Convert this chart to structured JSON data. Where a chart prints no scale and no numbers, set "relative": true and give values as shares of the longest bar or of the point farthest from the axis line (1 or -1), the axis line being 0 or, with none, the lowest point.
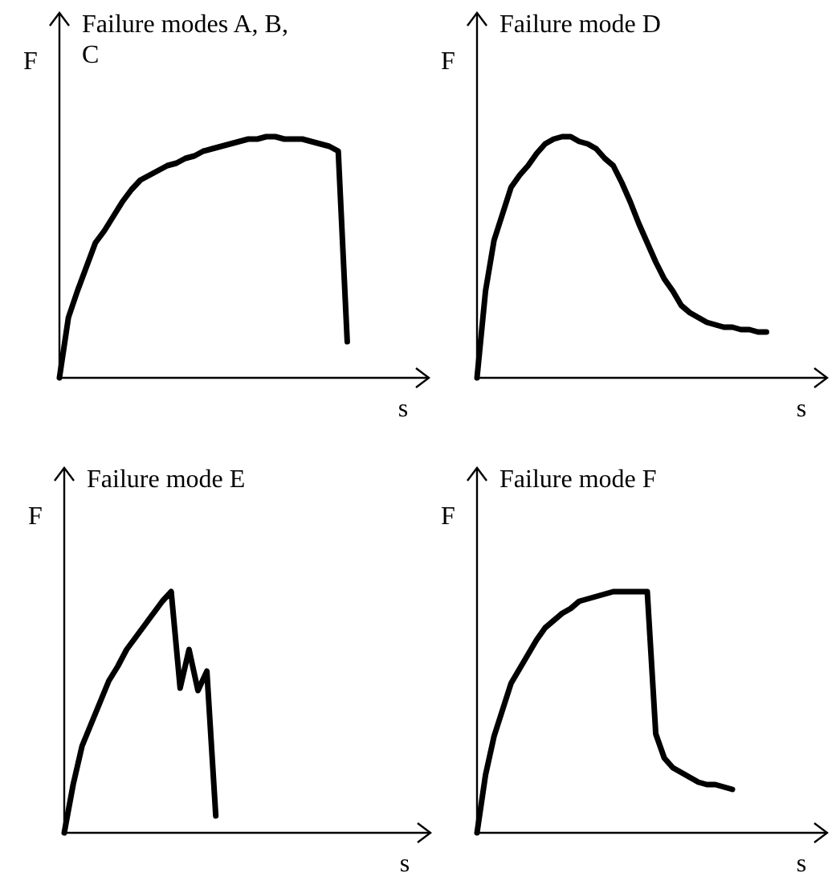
{
  "chart_data": [
    {
      "type": "line",
      "relative": true,
      "title": "Failure modes A, B, C",
      "xlabel": "s",
      "ylabel": "F",
      "marker": "none",
      "line_style": "solid",
      "categories": [
        null,
        null,
        null,
        null,
        null,
        null,
        null,
        null,
        null,
        null,
        null,
        null,
        null,
        null,
        null,
        null,
        null,
        null,
        null,
        null,
        null,
        null,
        null,
        null,
        null,
        null,
        null,
        null,
        null,
        null,
        null,
        null,
        null,
        null,
        null,
        null,
        null,
        null,
        null,
        null
      ],
      "series": [
        {
          "color": "#000000",
          "values": [
            0,
            0.25,
            0.36,
            0.46,
            0.56,
            0.61,
            0.67,
            0.73,
            0.78,
            0.82,
            0.84,
            0.86,
            0.88,
            0.89,
            0.91,
            0.92,
            0.94,
            0.95,
            0.96,
            0.97,
            0.98,
            0.99,
            0.99,
            1,
            1,
            0.99,
            0.99,
            0.99,
            0.98,
            0.97,
            0.96,
            0.94,
            0.15,
            null,
            null,
            null,
            null,
            null,
            null,
            null
          ]
        }
      ]
    },
    {
      "type": "line",
      "relative": true,
      "title": "Failure mode D",
      "xlabel": "s",
      "ylabel": "F",
      "marker": "none",
      "line_style": "solid",
      "categories": [
        null,
        null,
        null,
        null,
        null,
        null,
        null,
        null,
        null,
        null,
        null,
        null,
        null,
        null,
        null,
        null,
        null,
        null,
        null,
        null,
        null,
        null,
        null,
        null,
        null,
        null,
        null,
        null,
        null,
        null,
        null,
        null,
        null,
        null,
        null,
        null,
        null,
        null,
        null,
        null
      ],
      "series": [
        {
          "color": "#000000",
          "values": [
            0,
            0.36,
            0.57,
            0.68,
            0.79,
            0.84,
            0.88,
            0.93,
            0.97,
            0.99,
            1,
            1,
            0.98,
            0.97,
            0.95,
            0.91,
            0.88,
            0.81,
            0.73,
            0.64,
            0.56,
            0.48,
            0.41,
            0.36,
            0.3,
            0.27,
            0.25,
            0.23,
            0.22,
            0.21,
            0.21,
            0.2,
            0.2,
            0.19,
            0.19,
            null,
            null,
            null,
            null,
            null
          ]
        }
      ]
    },
    {
      "type": "line",
      "relative": true,
      "title": "Failure mode E",
      "xlabel": "s",
      "ylabel": "F",
      "marker": "none",
      "line_style": "solid",
      "categories": [
        null,
        null,
        null,
        null,
        null,
        null,
        null,
        null,
        null,
        null,
        null,
        null,
        null,
        null,
        null,
        null,
        null,
        null,
        null,
        null,
        null,
        null,
        null,
        null,
        null,
        null,
        null,
        null,
        null,
        null,
        null,
        null,
        null,
        null,
        null,
        null,
        null,
        null,
        null,
        null
      ],
      "series": [
        {
          "color": "#000000",
          "values": [
            0,
            0.2,
            0.36,
            0.45,
            0.54,
            0.63,
            0.69,
            0.76,
            0.81,
            0.86,
            0.91,
            0.96,
            1,
            0.6,
            0.76,
            0.59,
            0.67,
            0.07,
            null,
            null,
            null,
            null,
            null,
            null,
            null,
            null,
            null,
            null,
            null,
            null,
            null,
            null,
            null,
            null,
            null,
            null,
            null,
            null,
            null,
            null
          ]
        }
      ]
    },
    {
      "type": "line",
      "relative": true,
      "title": "Failure mode F",
      "xlabel": "s",
      "ylabel": "F",
      "marker": "none",
      "line_style": "solid",
      "categories": [
        null,
        null,
        null,
        null,
        null,
        null,
        null,
        null,
        null,
        null,
        null,
        null,
        null,
        null,
        null,
        null,
        null,
        null,
        null,
        null,
        null,
        null,
        null,
        null,
        null,
        null,
        null,
        null,
        null,
        null,
        null,
        null,
        null,
        null,
        null,
        null,
        null,
        null,
        null,
        null
      ],
      "series": [
        {
          "color": "#000000",
          "values": [
            0,
            0.24,
            0.4,
            0.51,
            0.62,
            0.68,
            0.74,
            0.8,
            0.85,
            0.88,
            0.91,
            0.93,
            0.96,
            0.97,
            0.98,
            0.99,
            1,
            1,
            1,
            1,
            1,
            0.41,
            0.31,
            0.27,
            0.25,
            0.23,
            0.21,
            0.2,
            0.2,
            0.19,
            0.18,
            null,
            null,
            null,
            null,
            null,
            null,
            null,
            null,
            null
          ]
        }
      ]
    }
  ]
}
